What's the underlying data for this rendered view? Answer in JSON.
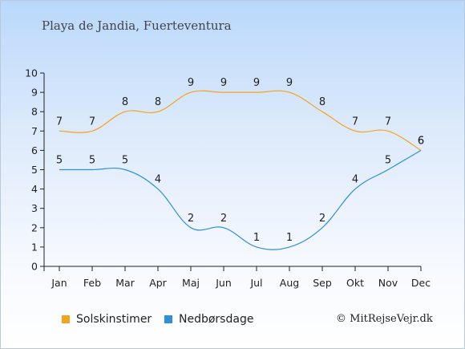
{
  "title": "Playa de Jandia, Fuerteventura",
  "credit": "© MitRejseVejr.dk",
  "colors": {
    "sun": "#f5a31a",
    "rain": "#2f8fdc",
    "axis": "#222222",
    "text": "#222222"
  },
  "chart_data": {
    "type": "line",
    "categories": [
      "Jan",
      "Feb",
      "Mar",
      "Apr",
      "Maj",
      "Jun",
      "Jul",
      "Aug",
      "Sep",
      "Okt",
      "Nov",
      "Dec"
    ],
    "series": [
      {
        "name": "Solskinstimer",
        "color": "#f5a31a",
        "values": [
          7,
          7,
          8,
          8,
          9,
          9,
          9,
          9,
          8,
          7,
          7,
          6
        ]
      },
      {
        "name": "Nedbørsdage",
        "color": "#2f8fdc",
        "values": [
          5,
          5,
          5,
          4,
          2,
          2,
          1,
          1,
          2,
          4,
          5,
          6
        ]
      }
    ],
    "ylim": [
      0,
      10
    ],
    "yticks": [
      0,
      1,
      2,
      3,
      4,
      5,
      6,
      7,
      8,
      9,
      10
    ],
    "legend_position": "bottom",
    "grid": false
  }
}
